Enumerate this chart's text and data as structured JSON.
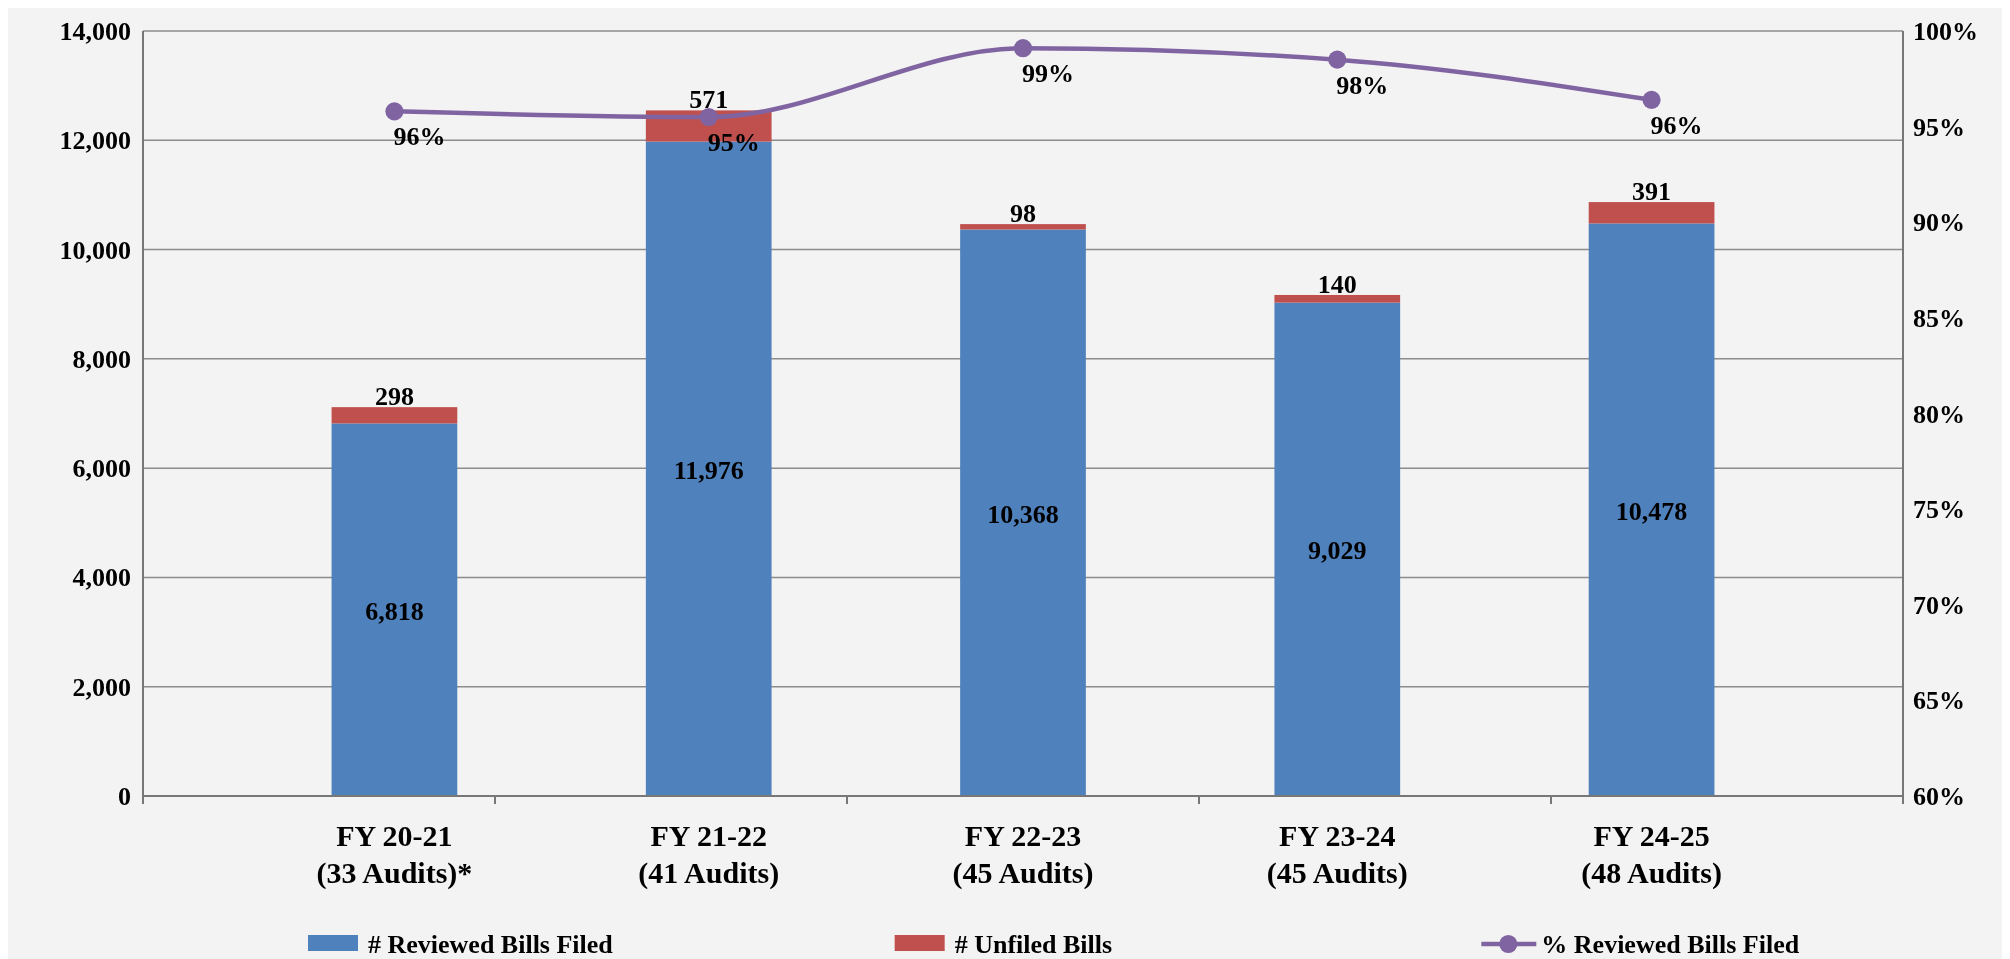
{
  "chart_data": {
    "type": "bar",
    "stacked": true,
    "categories": [
      "FY 20-21\n(33 Audits)*",
      "FY 21-22\n(41 Audits)",
      "FY 22-23\n(45 Audits)",
      "FY 23-24\n(45 Audits)",
      "FY 24-25\n(48 Audits)"
    ],
    "series": [
      {
        "name": "# Reviewed Bills Filed",
        "color": "#4f81bd",
        "values": [
          6818,
          11976,
          10368,
          9029,
          10478
        ],
        "value_labels": [
          "6,818",
          "11,976",
          "10,368",
          "9,029",
          "10,478"
        ]
      },
      {
        "name": "# Unfiled Bills",
        "color": "#c0504d",
        "values": [
          298,
          571,
          98,
          140,
          391
        ],
        "value_labels": [
          "298",
          "571",
          "98",
          "140",
          "391"
        ]
      },
      {
        "name": "% Reviewed Bills Filed",
        "type": "line",
        "axis": "y2",
        "color": "#8064a2",
        "values": [
          95.8,
          95.5,
          99.1,
          98.5,
          96.4
        ],
        "value_labels": [
          "96%",
          "95%",
          "99%",
          "98%",
          "96%"
        ]
      }
    ],
    "ylim": [
      0,
      14000
    ],
    "yticks": [
      0,
      {
        "value": 2000,
        "label": "2,000"
      },
      {
        "value": 4000,
        "label": "4,000"
      },
      {
        "value": 6000,
        "label": "6,000"
      },
      {
        "value": 8000,
        "label": "8,000"
      },
      {
        "value": 10000,
        "label": "10,000"
      },
      {
        "value": 12000,
        "label": "12,000"
      },
      {
        "value": 14000,
        "label": "14,000"
      }
    ],
    "y2lim": [
      60,
      100
    ],
    "y2ticks": [
      {
        "value": 60,
        "label": "60%"
      },
      {
        "value": 65,
        "label": "65%"
      },
      {
        "value": 70,
        "label": "70%"
      },
      {
        "value": 75,
        "label": "75%"
      },
      {
        "value": 80,
        "label": "80%"
      },
      {
        "value": 85,
        "label": "85%"
      },
      {
        "value": 90,
        "label": "90%"
      },
      {
        "value": 95,
        "label": "95%"
      },
      {
        "value": 100,
        "label": "100%"
      }
    ],
    "grid": "y",
    "legend": "bottom",
    "marker": "circle",
    "line_style": "solid"
  }
}
